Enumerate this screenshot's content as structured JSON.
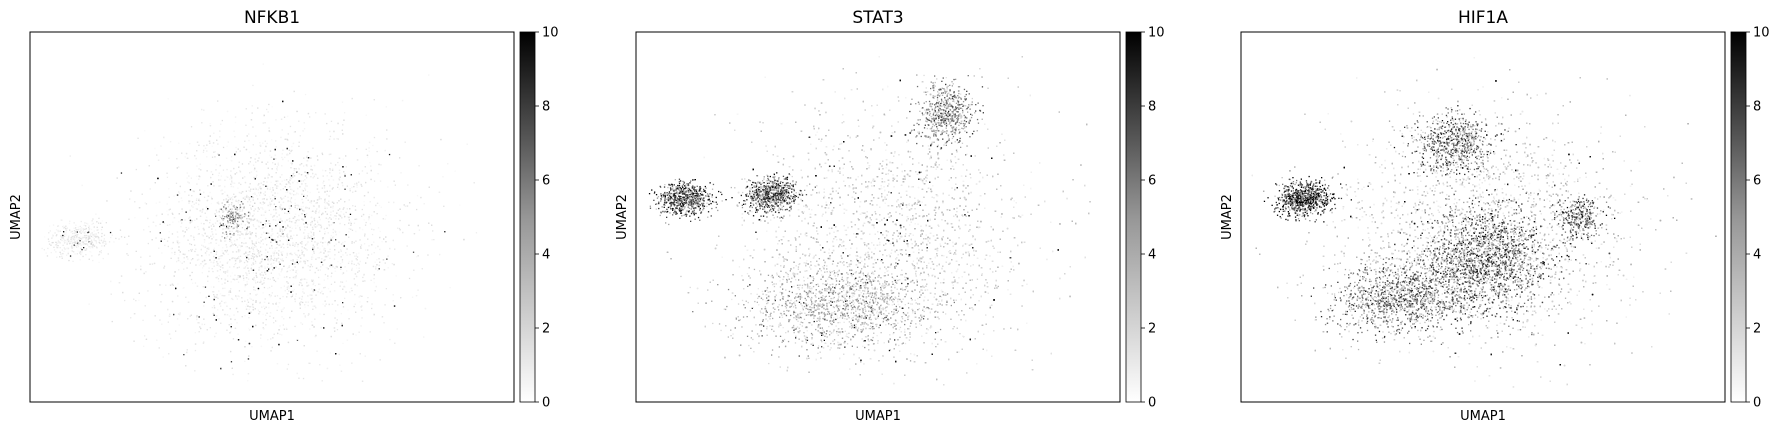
{
  "chart_data": [
    {
      "type": "scatter",
      "title": "NFKB1",
      "xlabel": "UMAP1",
      "ylabel": "UMAP2",
      "colorbar": {
        "range": [
          0,
          10
        ],
        "ticks": [
          "0",
          "2",
          "4",
          "6",
          "8",
          "10"
        ],
        "colormap": "greys"
      },
      "density_regions": [
        {
          "cx": 0.5,
          "cy": 0.55,
          "rx": 0.28,
          "ry": 0.32,
          "weight": 5000,
          "mean": 0.8
        },
        {
          "cx": 0.1,
          "cy": 0.56,
          "rx": 0.07,
          "ry": 0.05,
          "weight": 400,
          "mean": 0.8
        },
        {
          "cx": 0.42,
          "cy": 0.5,
          "rx": 0.03,
          "ry": 0.05,
          "weight": 150,
          "mean": 3.5
        }
      ]
    },
    {
      "type": "scatter",
      "title": "STAT3",
      "xlabel": "UMAP1",
      "ylabel": "UMAP2",
      "colorbar": {
        "range": [
          0,
          10
        ],
        "ticks": [
          "0",
          "2",
          "4",
          "6",
          "8",
          "10"
        ],
        "colormap": "greys"
      },
      "density_regions": [
        {
          "cx": 0.52,
          "cy": 0.55,
          "rx": 0.33,
          "ry": 0.37,
          "weight": 9000,
          "mean": 1.6
        },
        {
          "cx": 0.1,
          "cy": 0.45,
          "rx": 0.06,
          "ry": 0.05,
          "weight": 650,
          "mean": 6.8
        },
        {
          "cx": 0.28,
          "cy": 0.44,
          "rx": 0.06,
          "ry": 0.05,
          "weight": 700,
          "mean": 6.2
        },
        {
          "cx": 0.64,
          "cy": 0.22,
          "rx": 0.06,
          "ry": 0.09,
          "weight": 600,
          "mean": 4.5
        },
        {
          "cx": 0.42,
          "cy": 0.74,
          "rx": 0.22,
          "ry": 0.12,
          "weight": 1300,
          "mean": 3.0
        }
      ]
    },
    {
      "type": "scatter",
      "title": "HIF1A",
      "xlabel": "UMAP1",
      "ylabel": "UMAP2",
      "colorbar": {
        "range": [
          0,
          10
        ],
        "ticks": [
          "0",
          "2",
          "4",
          "6",
          "8",
          "10"
        ],
        "colormap": "greys"
      },
      "density_regions": [
        {
          "cx": 0.5,
          "cy": 0.54,
          "rx": 0.34,
          "ry": 0.36,
          "weight": 8000,
          "mean": 1.8
        },
        {
          "cx": 0.13,
          "cy": 0.45,
          "rx": 0.06,
          "ry": 0.05,
          "weight": 750,
          "mean": 8.3
        },
        {
          "cx": 0.5,
          "cy": 0.62,
          "rx": 0.15,
          "ry": 0.16,
          "weight": 2200,
          "mean": 5.5
        },
        {
          "cx": 0.44,
          "cy": 0.3,
          "rx": 0.09,
          "ry": 0.09,
          "weight": 700,
          "mean": 5.5
        },
        {
          "cx": 0.32,
          "cy": 0.72,
          "rx": 0.14,
          "ry": 0.1,
          "weight": 1100,
          "mean": 5.0
        },
        {
          "cx": 0.7,
          "cy": 0.5,
          "rx": 0.05,
          "ry": 0.07,
          "weight": 300,
          "mean": 6.0
        }
      ]
    }
  ]
}
